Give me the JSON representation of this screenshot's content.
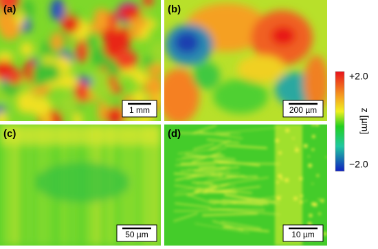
{
  "panels": [
    {
      "label": "(a)",
      "scale_bar": "1 mm"
    },
    {
      "label": "(b)",
      "scale_bar": "200 µm"
    },
    {
      "label": "(c)",
      "scale_bar": "50 µm"
    },
    {
      "label": "(d)",
      "scale_bar": "10 µm"
    }
  ],
  "colorbar": {
    "max_label": "+2.0",
    "min_label": "−2.0",
    "title": "z [µm]"
  }
}
